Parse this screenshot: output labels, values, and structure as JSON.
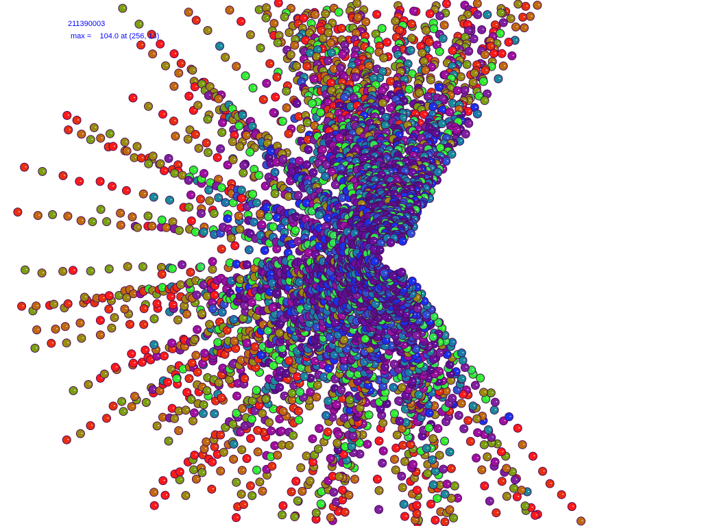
{
  "header": {
    "title": "211390003",
    "max_label": "max =",
    "max_value": "104.0 at (256, 13)"
  },
  "colors": {
    "text": "#0000ff",
    "outline": "#4a0a5a",
    "palette_far": [
      "#ff1a1a",
      "#e83010",
      "#c06a10",
      "#9a8a10",
      "#7aa010"
    ],
    "palette_mid": [
      "#30ee30",
      "#8020a0",
      "#a010a0",
      "#1a8a9a",
      "#9a8a10"
    ],
    "palette_near": [
      "#1a30ee",
      "#3050d0",
      "#6a10a0",
      "#1a7aaa",
      "#30e050",
      "#5a1090"
    ]
  }
}
